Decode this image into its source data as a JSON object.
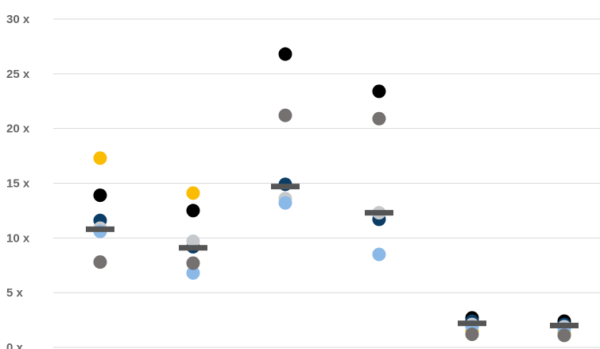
{
  "chart_data": {
    "type": "scatter",
    "title": "",
    "xlabel": "",
    "ylabel": "",
    "ylim": [
      0,
      30
    ],
    "y_ticks": [
      {
        "value": 0,
        "label": "0 x"
      },
      {
        "value": 5,
        "label": "5 x"
      },
      {
        "value": 10,
        "label": "10 x"
      },
      {
        "value": 15,
        "label": "15 x"
      },
      {
        "value": 20,
        "label": "20 x"
      },
      {
        "value": 25,
        "label": "25 x"
      },
      {
        "value": 30,
        "label": "30 x"
      }
    ],
    "grid": true,
    "legend": "none",
    "categories": [
      "",
      "",
      "",
      "",
      "",
      ""
    ],
    "series": [
      {
        "color": "#fbbc04",
        "values": [
          17.3,
          14.1,
          null,
          null,
          1.5,
          1.3
        ]
      },
      {
        "color": "#000000",
        "values": [
          13.9,
          12.5,
          26.8,
          23.4,
          2.7,
          2.4
        ]
      },
      {
        "color": "#0b3d66",
        "values": [
          11.6,
          9.2,
          14.9,
          11.7,
          2.4,
          2.1
        ]
      },
      {
        "color": "#c6c9cc",
        "values": [
          10.9,
          9.7,
          13.6,
          12.3,
          2.1,
          1.9
        ]
      },
      {
        "color": "#8ab9e8",
        "values": [
          10.6,
          6.8,
          13.2,
          8.5,
          1.9,
          1.7
        ]
      },
      {
        "color": "#757171",
        "values": [
          7.8,
          7.7,
          21.2,
          20.9,
          1.2,
          1.1
        ]
      }
    ],
    "median": {
      "color": "#555555",
      "values": [
        10.8,
        9.1,
        14.7,
        12.3,
        2.2,
        2.0
      ]
    }
  }
}
